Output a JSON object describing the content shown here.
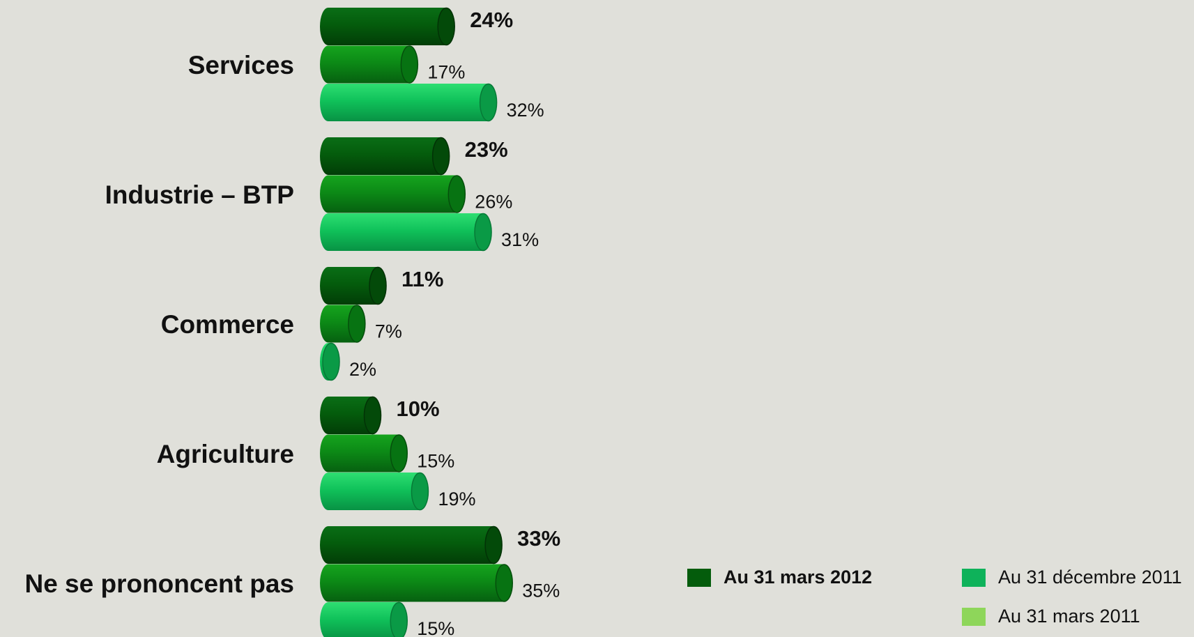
{
  "chart_data": {
    "type": "bar",
    "orientation": "horizontal",
    "categories": [
      "Services",
      "Industrie – BTP",
      "Commerce",
      "Agriculture",
      "Ne se prononcent pas"
    ],
    "series": [
      {
        "name": "Au 31 mars 2012",
        "values": [
          24,
          23,
          11,
          10,
          33
        ],
        "labels": [
          "24%",
          "23%",
          "11%",
          "10%",
          "33%"
        ],
        "color": "#045c0c",
        "emphasis": true
      },
      {
        "name": "Au 31 décembre 2011",
        "values": [
          17,
          26,
          7,
          15,
          35
        ],
        "labels": [
          "17%",
          "26%",
          "7%",
          "15%",
          "35%"
        ],
        "color": "#0c8a16"
      },
      {
        "name": "Au 31 mars 2011",
        "values": [
          32,
          31,
          2,
          19,
          15
        ],
        "labels": [
          "32%",
          "31%",
          "2%",
          "19%",
          "15%"
        ],
        "color": "#10c25a"
      }
    ],
    "legend": [
      {
        "label": "Au 31 mars 2012",
        "color": "#045c0c",
        "bold": true
      },
      {
        "label": "Au 31 décembre 2011",
        "color": "#0eb25a",
        "bold": false
      },
      {
        "label": "Au 31 mars 2011",
        "color": "#8ed65a",
        "bold": false
      }
    ],
    "legend_position": "bottom-right",
    "grid": false,
    "axes_visible": false
  }
}
